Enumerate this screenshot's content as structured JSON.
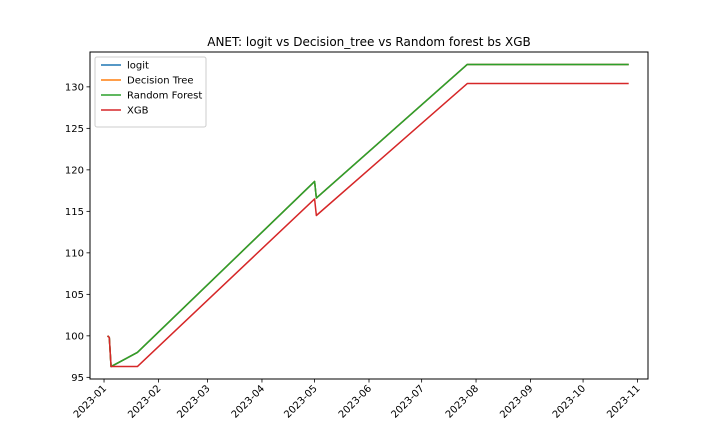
{
  "chart_data": {
    "type": "line",
    "title": "ANET: logit vs Decision_tree vs Random forest bs XGB",
    "xlabel": "",
    "ylabel": "",
    "x_range": [
      "2022-12-24",
      "2023-11-07"
    ],
    "ylim": [
      94.8,
      134.2
    ],
    "x_ticks": [
      "2023-01",
      "2023-02",
      "2023-03",
      "2023-04",
      "2023-05",
      "2023-06",
      "2023-07",
      "2023-08",
      "2023-09",
      "2023-10",
      "2023-11"
    ],
    "y_ticks": [
      95,
      100,
      105,
      110,
      115,
      120,
      125,
      130
    ],
    "grid": false,
    "legend_position": "top-left",
    "series": [
      {
        "name": "logit",
        "color": "#1f77b4",
        "points": [
          [
            "2023-01-03",
            100.0
          ],
          [
            "2023-01-04",
            99.8
          ],
          [
            "2023-01-05",
            96.3
          ],
          [
            "2023-01-20",
            98.0
          ],
          [
            "2023-05-01",
            118.6
          ],
          [
            "2023-05-02",
            116.6
          ],
          [
            "2023-07-27",
            132.7
          ],
          [
            "2023-10-27",
            132.7
          ]
        ]
      },
      {
        "name": "Decision Tree",
        "color": "#ff7f0e",
        "points": [
          [
            "2023-01-03",
            100.0
          ],
          [
            "2023-01-04",
            99.8
          ],
          [
            "2023-01-05",
            96.3
          ],
          [
            "2023-01-20",
            98.0
          ],
          [
            "2023-05-01",
            118.6
          ],
          [
            "2023-05-02",
            116.6
          ],
          [
            "2023-07-27",
            132.7
          ],
          [
            "2023-10-27",
            132.7
          ]
        ]
      },
      {
        "name": "Random Forest",
        "color": "#2ca02c",
        "points": [
          [
            "2023-01-03",
            100.0
          ],
          [
            "2023-01-04",
            99.8
          ],
          [
            "2023-01-05",
            96.3
          ],
          [
            "2023-01-20",
            98.0
          ],
          [
            "2023-05-01",
            118.6
          ],
          [
            "2023-05-02",
            116.6
          ],
          [
            "2023-07-27",
            132.7
          ],
          [
            "2023-10-27",
            132.7
          ]
        ]
      },
      {
        "name": "XGB",
        "color": "#d62728",
        "points": [
          [
            "2023-01-03",
            100.0
          ],
          [
            "2023-01-04",
            99.8
          ],
          [
            "2023-01-05",
            96.3
          ],
          [
            "2023-01-20",
            96.3
          ],
          [
            "2023-05-01",
            116.5
          ],
          [
            "2023-05-02",
            114.5
          ],
          [
            "2023-07-27",
            130.4
          ],
          [
            "2023-10-27",
            130.4
          ]
        ]
      }
    ]
  }
}
